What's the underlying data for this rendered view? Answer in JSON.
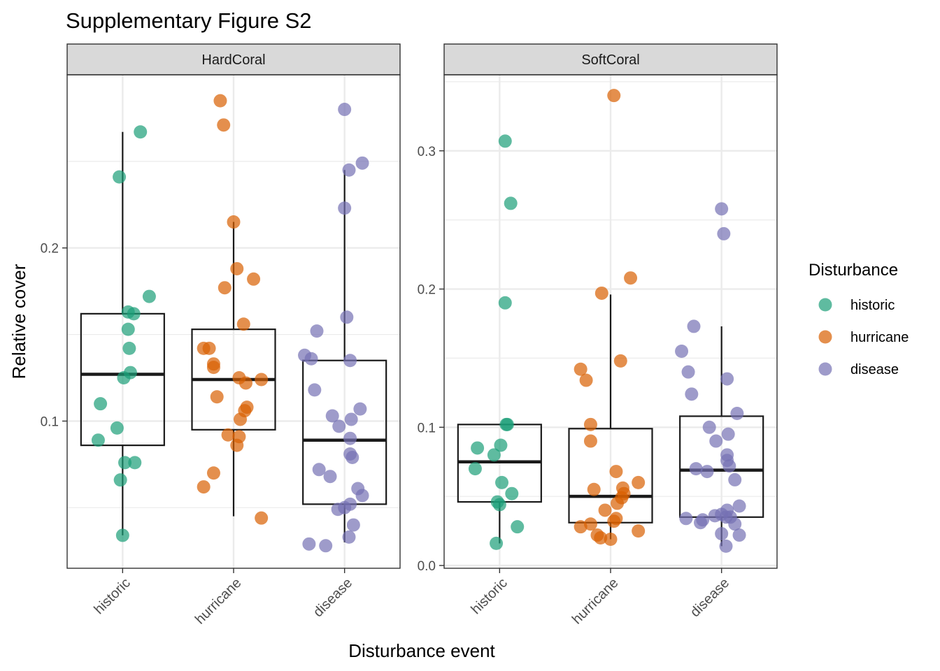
{
  "figure": {
    "title": "Supplementary Figure S2",
    "xlabel": "Disturbance event",
    "ylabel": "Relative cover"
  },
  "legend": {
    "title": "Disturbance",
    "placement": "right",
    "items": [
      {
        "label": "historic",
        "color": "#1b9e77"
      },
      {
        "label": "hurricane",
        "color": "#d95f02"
      },
      {
        "label": "disease",
        "color": "#7570b3"
      }
    ]
  },
  "colors": {
    "historic": "#1b9e77",
    "hurricane": "#d95f02",
    "disease": "#7570b3",
    "strip_bg": "#d9d9d9",
    "grid": "#ebebeb"
  },
  "chart_data": [
    {
      "type": "box+jitter",
      "facet": "HardCoral",
      "categories": [
        "historic",
        "hurricane",
        "disease"
      ],
      "ylim": [
        0.015,
        0.3
      ],
      "yticks": [
        0.1,
        0.2
      ],
      "ytick_labels": [
        "0.1",
        "0.2"
      ],
      "grid": true,
      "boxes": [
        {
          "category": "historic",
          "min": 0.034,
          "q1": 0.086,
          "median": 0.127,
          "q3": 0.162,
          "max": 0.267
        },
        {
          "category": "hurricane",
          "min": 0.045,
          "q1": 0.095,
          "median": 0.124,
          "q3": 0.153,
          "max": 0.215
        },
        {
          "category": "disease",
          "min": 0.03,
          "q1": 0.052,
          "median": 0.089,
          "q3": 0.135,
          "max": 0.245
        }
      ],
      "points": [
        {
          "category": "historic",
          "values": [
            0.267,
            0.241,
            0.172,
            0.163,
            0.162,
            0.153,
            0.142,
            0.128,
            0.125,
            0.11,
            0.096,
            0.089,
            0.076,
            0.076,
            0.066,
            0.034
          ]
        },
        {
          "category": "hurricane",
          "values": [
            0.285,
            0.271,
            0.215,
            0.188,
            0.182,
            0.177,
            0.156,
            0.142,
            0.142,
            0.133,
            0.131,
            0.125,
            0.124,
            0.122,
            0.114,
            0.108,
            0.106,
            0.101,
            0.092,
            0.091,
            0.086,
            0.07,
            0.062,
            0.044
          ]
        },
        {
          "category": "disease",
          "values": [
            0.28,
            0.249,
            0.245,
            0.223,
            0.16,
            0.152,
            0.138,
            0.136,
            0.135,
            0.118,
            0.107,
            0.103,
            0.101,
            0.097,
            0.09,
            0.081,
            0.079,
            0.072,
            0.068,
            0.061,
            0.057,
            0.052,
            0.05,
            0.049,
            0.04,
            0.033,
            0.029,
            0.028
          ]
        }
      ]
    },
    {
      "type": "box+jitter",
      "facet": "SoftCoral",
      "categories": [
        "historic",
        "hurricane",
        "disease"
      ],
      "ylim": [
        -0.002,
        0.355
      ],
      "yticks": [
        0.0,
        0.1,
        0.2,
        0.3
      ],
      "ytick_labels": [
        "0.0",
        "0.1",
        "0.2",
        "0.3"
      ],
      "grid": true,
      "boxes": [
        {
          "category": "historic",
          "min": 0.016,
          "q1": 0.046,
          "median": 0.075,
          "q3": 0.102,
          "max": 0.102
        },
        {
          "category": "hurricane",
          "min": 0.019,
          "q1": 0.031,
          "median": 0.05,
          "q3": 0.099,
          "max": 0.196
        },
        {
          "category": "disease",
          "min": 0.014,
          "q1": 0.035,
          "median": 0.069,
          "q3": 0.108,
          "max": 0.173
        }
      ],
      "points": [
        {
          "category": "historic",
          "values": [
            0.307,
            0.262,
            0.19,
            0.102,
            0.102,
            0.087,
            0.085,
            0.08,
            0.07,
            0.06,
            0.052,
            0.046,
            0.044,
            0.028,
            0.016
          ]
        },
        {
          "category": "hurricane",
          "values": [
            0.34,
            0.208,
            0.197,
            0.148,
            0.142,
            0.134,
            0.102,
            0.09,
            0.068,
            0.06,
            0.056,
            0.055,
            0.052,
            0.049,
            0.045,
            0.04,
            0.034,
            0.032,
            0.03,
            0.028,
            0.025,
            0.022,
            0.02,
            0.019
          ]
        },
        {
          "category": "disease",
          "values": [
            0.258,
            0.24,
            0.173,
            0.155,
            0.14,
            0.135,
            0.124,
            0.11,
            0.1,
            0.095,
            0.09,
            0.08,
            0.076,
            0.072,
            0.07,
            0.068,
            0.062,
            0.043,
            0.04,
            0.037,
            0.036,
            0.035,
            0.035,
            0.034,
            0.033,
            0.031,
            0.03,
            0.023,
            0.022,
            0.014
          ]
        }
      ]
    }
  ]
}
